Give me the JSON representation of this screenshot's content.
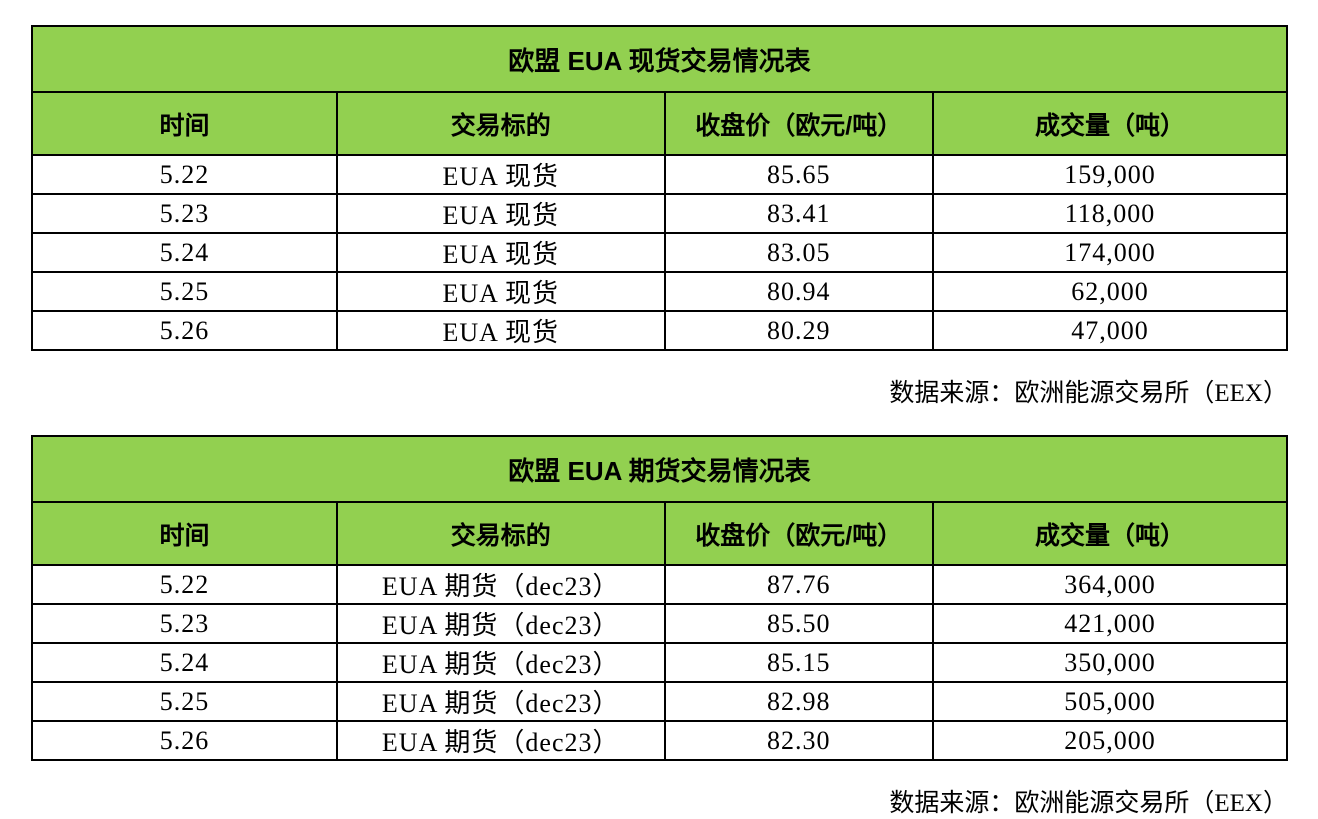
{
  "colors": {
    "header_green": "#92D050",
    "border": "#000000",
    "page_background": "#FFFFFF"
  },
  "tables": [
    {
      "title": "欧盟 EUA 现货交易情况表",
      "columns": [
        "时间",
        "交易标的",
        "收盘价（欧元/吨）",
        "成交量（吨）"
      ],
      "rows": [
        [
          "5.22",
          "EUA 现货",
          "85.65",
          "159,000"
        ],
        [
          "5.23",
          "EUA 现货",
          "83.41",
          "118,000"
        ],
        [
          "5.24",
          "EUA 现货",
          "83.05",
          "174,000"
        ],
        [
          "5.25",
          "EUA 现货",
          "80.94",
          "62,000"
        ],
        [
          "5.26",
          "EUA 现货",
          "80.29",
          "47,000"
        ]
      ],
      "source": "数据来源：欧洲能源交易所（EEX）"
    },
    {
      "title": "欧盟 EUA 期货交易情况表",
      "columns": [
        "时间",
        "交易标的",
        "收盘价（欧元/吨）",
        "成交量（吨）"
      ],
      "rows": [
        [
          "5.22",
          "EUA 期货（dec23）",
          "87.76",
          "364,000"
        ],
        [
          "5.23",
          "EUA 期货（dec23）",
          "85.50",
          "421,000"
        ],
        [
          "5.24",
          "EUA 期货（dec23）",
          "85.15",
          "350,000"
        ],
        [
          "5.25",
          "EUA 期货（dec23）",
          "82.98",
          "505,000"
        ],
        [
          "5.26",
          "EUA 期货（dec23）",
          "82.30",
          "205,000"
        ]
      ],
      "source": "数据来源：欧洲能源交易所（EEX）"
    }
  ]
}
